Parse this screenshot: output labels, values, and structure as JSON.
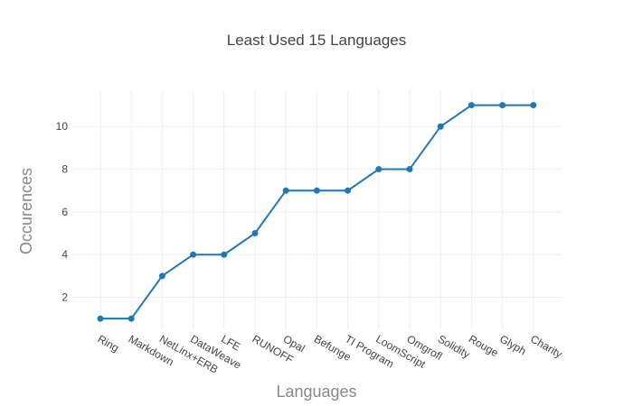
{
  "chart_data": {
    "type": "line",
    "title": "Least Used 15 Languages",
    "xlabel": "Languages",
    "ylabel": "Occurences",
    "categories": [
      "Ring",
      "Markdown",
      "NetLinx+ERB",
      "DataWeave",
      "LFE",
      "RUNOFF",
      "Opal",
      "Befunge",
      "TI Program",
      "LoomScript",
      "Omgrofl",
      "Solidity",
      "Rouge",
      "Glyph",
      "Charity"
    ],
    "series": [
      {
        "values": [
          1,
          1,
          3,
          4,
          4,
          5,
          7,
          7,
          7,
          8,
          8,
          10,
          11,
          11,
          11
        ]
      }
    ],
    "ylim": [
      0.5,
      11.7
    ],
    "yticks": [
      2,
      4,
      6,
      8,
      10
    ],
    "grid": true,
    "legend": "none",
    "colors": {
      "series": "#1f77b4"
    }
  }
}
